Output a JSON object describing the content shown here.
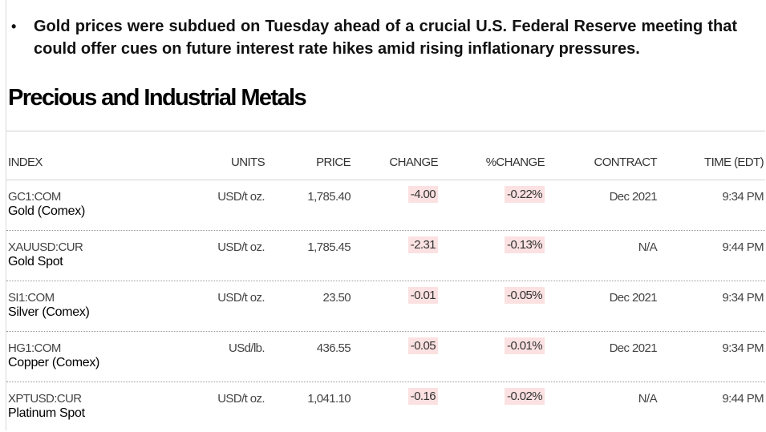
{
  "bullet": {
    "marker": "•",
    "text": "Gold prices were subdued on Tuesday ahead of a crucial U.S. Federal Reserve meeting that could offer cues on future interest rate hikes amid rising inflationary pressures."
  },
  "section_title": "Precious and Industrial Metals",
  "columns": [
    "INDEX",
    "UNITS",
    "PRICE",
    "CHANGE",
    "%CHANGE",
    "CONTRACT",
    "TIME (EDT)"
  ],
  "rows": [
    {
      "symbol": "GC1:COM",
      "name": "Gold (Comex)",
      "units": "USD/t oz.",
      "price": "1,785.40",
      "change": "-4.00",
      "pct_change": "-0.22%",
      "contract": "Dec 2021",
      "time": "9:34 PM"
    },
    {
      "symbol": "XAUUSD:CUR",
      "name": "Gold Spot",
      "units": "USD/t oz.",
      "price": "1,785.45",
      "change": "-2.31",
      "pct_change": "-0.13%",
      "contract": "N/A",
      "time": "9:44 PM"
    },
    {
      "symbol": "SI1:COM",
      "name": "Silver (Comex)",
      "units": "USD/t oz.",
      "price": "23.50",
      "change": "-0.01",
      "pct_change": "-0.05%",
      "contract": "Dec 2021",
      "time": "9:34 PM"
    },
    {
      "symbol": "HG1:COM",
      "name": "Copper (Comex)",
      "units": "USd/lb.",
      "price": "436.55",
      "change": "-0.05",
      "pct_change": "-0.01%",
      "contract": "Dec 2021",
      "time": "9:34 PM"
    },
    {
      "symbol": "XPTUSD:CUR",
      "name": "Platinum Spot",
      "units": "USD/t oz.",
      "price": "1,041.10",
      "change": "-0.16",
      "pct_change": "-0.02%",
      "contract": "N/A",
      "time": "9:44 PM"
    }
  ],
  "colors": {
    "negative_highlight": "#fbe1e1"
  }
}
